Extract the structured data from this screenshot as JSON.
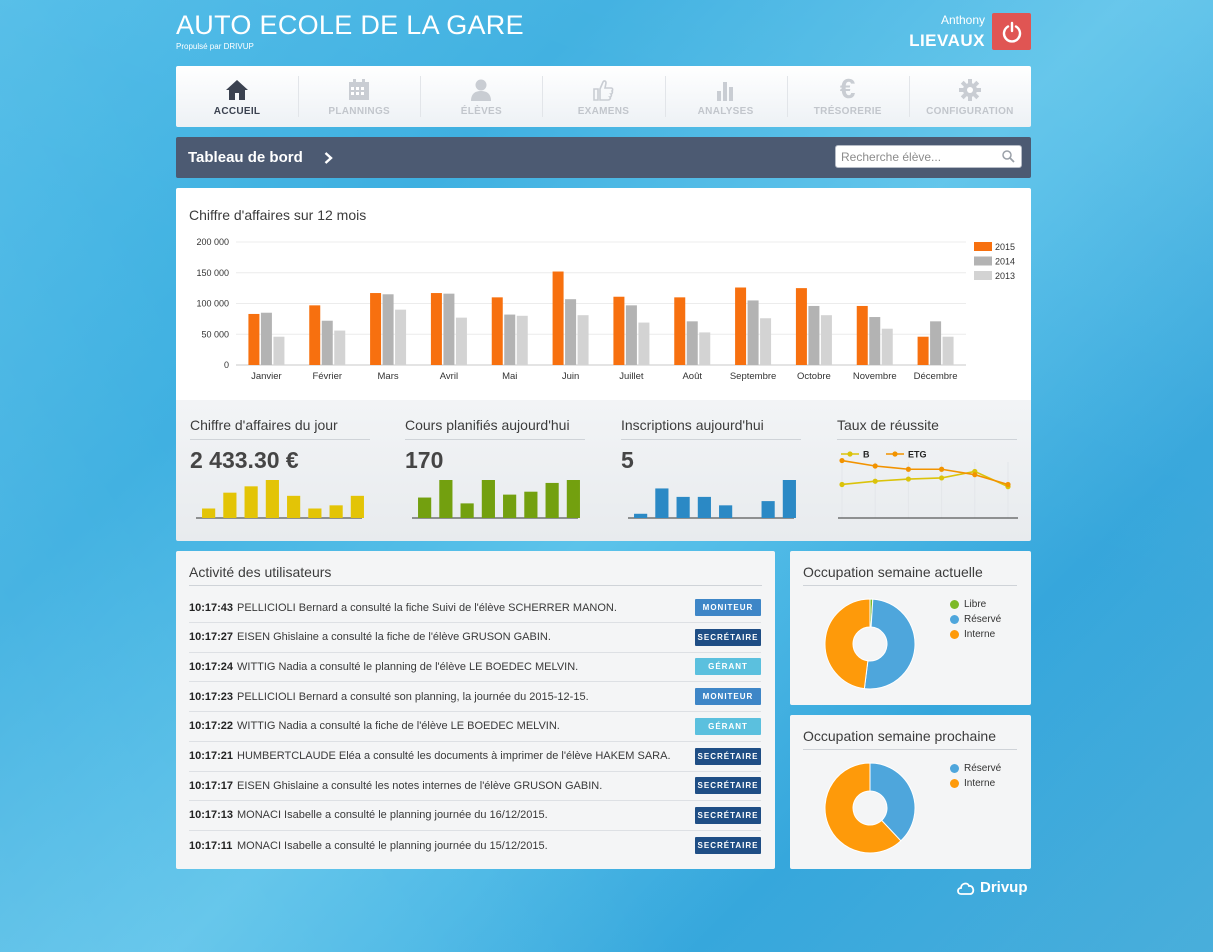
{
  "header": {
    "school_name": "AUTO ECOLE DE LA GARE",
    "powered_by": "Propulsé par DRIVUP",
    "user_first_name": "Anthony",
    "user_last_name": "LIEVAUX"
  },
  "nav": {
    "items": [
      {
        "label": "ACCUEIL",
        "icon": "home-icon",
        "active": true
      },
      {
        "label": "PLANNINGS",
        "icon": "calendar-icon",
        "active": false
      },
      {
        "label": "ÉLÈVES",
        "icon": "user-icon",
        "active": false
      },
      {
        "label": "EXAMENS",
        "icon": "thumbs-up-icon",
        "active": false
      },
      {
        "label": "ANALYSES",
        "icon": "bar-chart-icon",
        "active": false
      },
      {
        "label": "TRÉSORERIE",
        "icon": "euro-icon",
        "active": false
      },
      {
        "label": "CONFIGURATION",
        "icon": "gear-icon",
        "active": false
      }
    ]
  },
  "toolbar": {
    "title": "Tableau de bord",
    "search_placeholder": "Recherche élève..."
  },
  "revenue": {
    "title": "Chiffre d'affaires sur 12 mois"
  },
  "kpis": [
    {
      "title": "Chiffre d'affaires du jour",
      "value": "2 433.30 €"
    },
    {
      "title": "Cours planifiés aujourd'hui",
      "value": "170"
    },
    {
      "title": "Inscriptions aujourd'hui",
      "value": "5"
    },
    {
      "title": "Taux de réussite",
      "value": ""
    }
  ],
  "activity": {
    "title": "Activité des utilisateurs",
    "rows": [
      {
        "time": "10:17:43",
        "text": "PELLICIOLI Bernard a consulté la fiche Suivi de l'élève SCHERRER MANON.",
        "role": "MONITEUR"
      },
      {
        "time": "10:17:27",
        "text": "EISEN Ghislaine a consulté la fiche de l'élève GRUSON GABIN.",
        "role": "SECRÉTAIRE"
      },
      {
        "time": "10:17:24",
        "text": "WITTIG Nadia a consulté le planning de l'élève LE BOEDEC MELVIN.",
        "role": "GÉRANT"
      },
      {
        "time": "10:17:23",
        "text": "PELLICIOLI Bernard a consulté son planning, la journée du 2015-12-15.",
        "role": "MONITEUR"
      },
      {
        "time": "10:17:22",
        "text": "WITTIG Nadia a consulté la fiche de l'élève LE BOEDEC MELVIN.",
        "role": "GÉRANT"
      },
      {
        "time": "10:17:21",
        "text": "HUMBERTCLAUDE Eléa a consulté les documents à imprimer de l'élève HAKEM SARA.",
        "role": "SECRÉTAIRE"
      },
      {
        "time": "10:17:17",
        "text": "EISEN Ghislaine a consulté les notes internes de l'élève GRUSON GABIN.",
        "role": "SECRÉTAIRE"
      },
      {
        "time": "10:17:13",
        "text": "MONACI Isabelle a consulté le planning journée du 16/12/2015.",
        "role": "SECRÉTAIRE"
      },
      {
        "time": "10:17:11",
        "text": "MONACI Isabelle a consulté le planning journée du 15/12/2015.",
        "role": "SECRÉTAIRE"
      }
    ]
  },
  "role_colors": {
    "MONITEUR": "#3e86c7",
    "SECRÉTAIRE": "#1f4e85",
    "GÉRANT": "#5bc0de"
  },
  "occupancy_current": {
    "title": "Occupation semaine actuelle",
    "legend": [
      {
        "label": "Libre",
        "color": "#7cb928"
      },
      {
        "label": "Réservé",
        "color": "#4ea6dc"
      },
      {
        "label": "Interne",
        "color": "#fe9a0a"
      }
    ]
  },
  "occupancy_next": {
    "title": "Occupation semaine prochaine",
    "legend": [
      {
        "label": "Réservé",
        "color": "#4ea6dc"
      },
      {
        "label": "Interne",
        "color": "#fe9a0a"
      }
    ]
  },
  "footer": {
    "brand": "Drivup"
  },
  "chart_data": [
    {
      "type": "bar",
      "title": "Chiffre d'affaires sur 12 mois",
      "categories": [
        "Janvier",
        "Février",
        "Mars",
        "Avril",
        "Mai",
        "Juin",
        "Juillet",
        "Août",
        "Septembre",
        "Octobre",
        "Novembre",
        "Décembre"
      ],
      "series": [
        {
          "name": "2015",
          "color": "#f7700f",
          "values": [
            83000,
            97000,
            117000,
            117000,
            110000,
            152000,
            111000,
            110000,
            126000,
            125000,
            96000,
            46000
          ]
        },
        {
          "name": "2014",
          "color": "#b3b3b3",
          "values": [
            85000,
            72000,
            115000,
            116000,
            82000,
            107000,
            97000,
            71000,
            105000,
            96000,
            78000,
            71000
          ]
        },
        {
          "name": "2013",
          "color": "#d3d3d3",
          "values": [
            46000,
            56000,
            90000,
            77000,
            80000,
            81000,
            69000,
            53000,
            76000,
            81000,
            59000,
            46000
          ]
        }
      ],
      "yticks": [
        "0",
        "50 000",
        "100 000",
        "150 000",
        "200 000"
      ],
      "ylim": [
        0,
        200000
      ],
      "grid": true,
      "legend": "right"
    },
    {
      "type": "bar",
      "color": "#e3c406",
      "values": [
        3,
        8,
        10,
        12,
        7,
        3,
        4,
        7
      ]
    },
    {
      "type": "bar",
      "color": "#73a00f",
      "values": [
        7,
        13,
        5,
        13,
        8,
        9,
        12,
        13
      ]
    },
    {
      "type": "bar",
      "color": "#2b89c5",
      "values": [
        1,
        7,
        5,
        5,
        3,
        0,
        4,
        9
      ]
    },
    {
      "type": "line",
      "legend": "top-left",
      "series": [
        {
          "name": "B",
          "color": "#dbc30a",
          "values": [
            40,
            43,
            45,
            46,
            52,
            38
          ]
        },
        {
          "name": "ETG",
          "color": "#f29300",
          "values": [
            62,
            57,
            54,
            54,
            49,
            40
          ]
        }
      ],
      "ylim": [
        0,
        100
      ]
    },
    {
      "type": "pie",
      "title": "Occupation semaine actuelle",
      "slices": [
        {
          "label": "Libre",
          "value": 1,
          "color": "#7cb928"
        },
        {
          "label": "Réservé",
          "value": 51,
          "color": "#4ea6dc"
        },
        {
          "label": "Interne",
          "value": 48,
          "color": "#fe9a0a"
        }
      ]
    },
    {
      "type": "pie",
      "title": "Occupation semaine prochaine",
      "slices": [
        {
          "label": "Réservé",
          "value": 38,
          "color": "#4ea6dc"
        },
        {
          "label": "Interne",
          "value": 62,
          "color": "#fe9a0a"
        }
      ]
    }
  ]
}
